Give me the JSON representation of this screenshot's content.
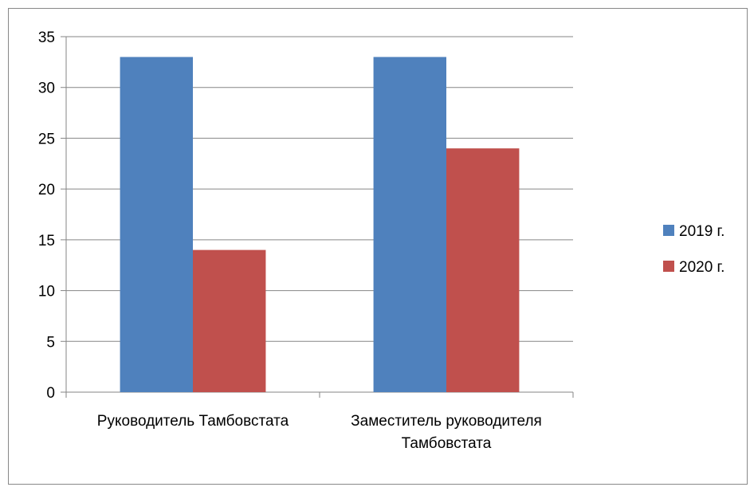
{
  "chart_data": {
    "type": "bar",
    "categories": [
      [
        "Руководитель Тамбовстата"
      ],
      [
        "Заместитель руководителя",
        "Тамбовстата"
      ]
    ],
    "series": [
      {
        "name": "2019 г.",
        "color": "#4F81BD",
        "values": [
          33,
          33
        ]
      },
      {
        "name": "2020 г.",
        "color": "#C0504D",
        "values": [
          14,
          24
        ]
      }
    ],
    "ylim": [
      0,
      35
    ],
    "yticks": [
      0,
      5,
      10,
      15,
      20,
      25,
      30,
      35
    ],
    "grid": true,
    "legend": "right",
    "title": "",
    "xlabel": "",
    "ylabel": ""
  }
}
